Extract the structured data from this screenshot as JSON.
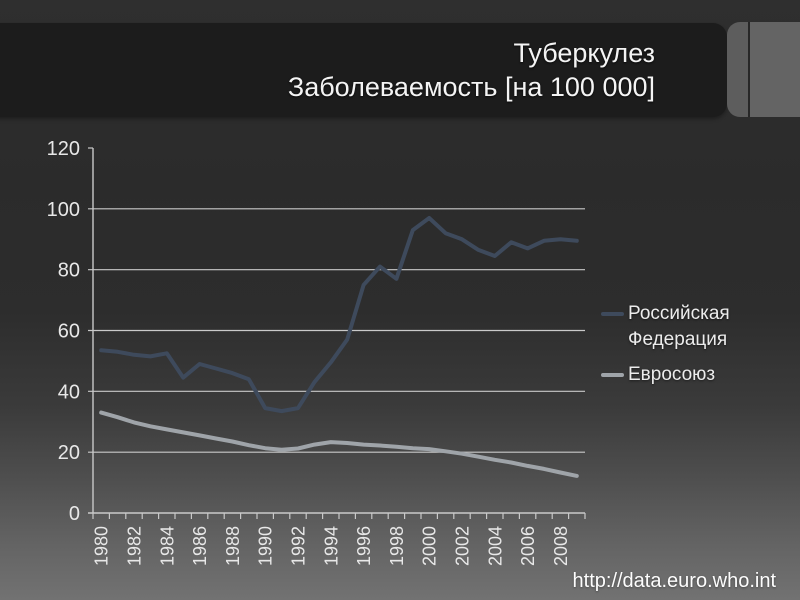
{
  "title": {
    "line1": "Туберкулез",
    "line2": "Заболеваемость [на 100 000]"
  },
  "footer": {
    "url": "http://data.euro.who.int"
  },
  "colors": {
    "bg_top": "#2d2d2d",
    "bg_bottom": "#727272",
    "title_bar": "#1c1c1c",
    "title_text": "#f4f4f4",
    "tab_left": "#5d5d5d",
    "tab_right": "#646464",
    "tab_divider": "#272727",
    "axis": "#c9c9c9",
    "tick_label": "#e8e8e8",
    "legend_text": "#ececec",
    "series_russia": "#3e4a5c",
    "series_eu": "#9fa4a9"
  },
  "chart_data": {
    "type": "line",
    "title": "Туберкулез — Заболеваемость [на 100 000]",
    "xlabel": "",
    "ylabel": "",
    "x": [
      1980,
      1981,
      1982,
      1983,
      1984,
      1985,
      1986,
      1987,
      1988,
      1989,
      1990,
      1991,
      1992,
      1993,
      1994,
      1995,
      1996,
      1997,
      1998,
      1999,
      2000,
      2001,
      2002,
      2003,
      2004,
      2005,
      2006,
      2007,
      2008,
      2009
    ],
    "x_label_step": 2,
    "x_last_labeled": 2008,
    "ylim": [
      0,
      120
    ],
    "yticks": [
      0,
      20,
      40,
      60,
      80,
      100,
      120
    ],
    "grid": "horizontal",
    "legend_position": "right",
    "series": [
      {
        "name": "Российская Федерация",
        "color": "#3e4a5c",
        "values": [
          53.5,
          53,
          52,
          51.5,
          52.5,
          44.5,
          49,
          47.5,
          46,
          44,
          34.5,
          33.5,
          34.5,
          43,
          49.5,
          57,
          75,
          81,
          77,
          93,
          97,
          92,
          90,
          86.5,
          84.5,
          89,
          87,
          89.5,
          90,
          89.5
        ]
      },
      {
        "name": "Евросоюз",
        "color": "#9fa4a9",
        "values": [
          33,
          31.5,
          29.8,
          28.5,
          27.5,
          26.5,
          25.5,
          24.5,
          23.5,
          22.3,
          21.3,
          20.8,
          21.2,
          22.5,
          23.3,
          23,
          22.5,
          22.2,
          21.8,
          21.3,
          21,
          20.3,
          19.5,
          18.5,
          17.5,
          16.6,
          15.5,
          14.5,
          13.3,
          12.2
        ]
      }
    ]
  }
}
